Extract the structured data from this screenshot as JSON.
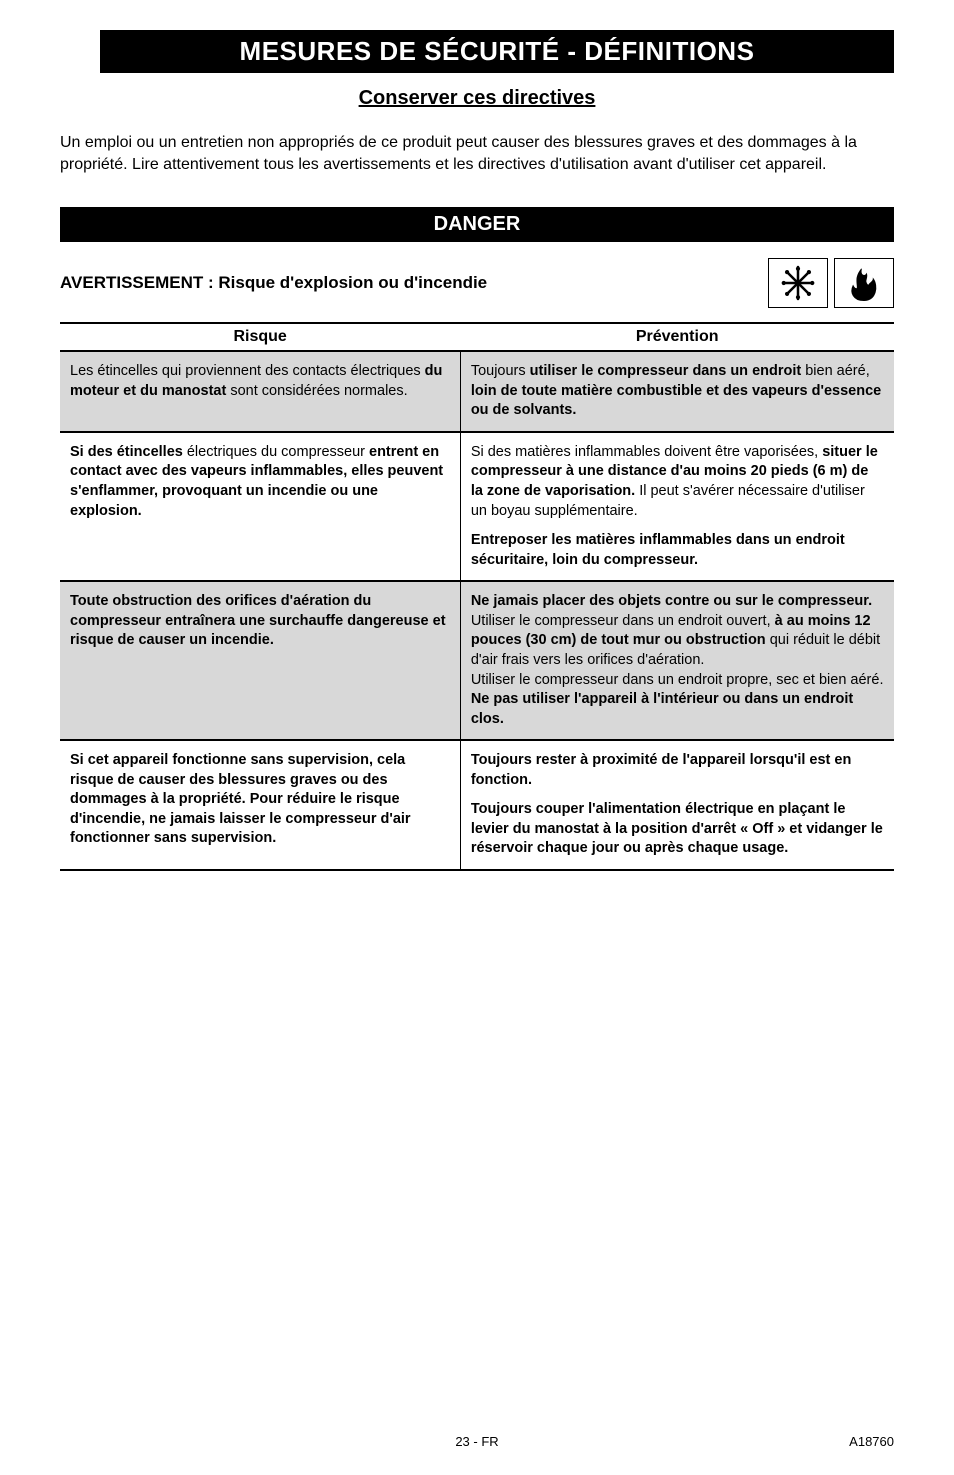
{
  "title": "MESURES DE SÉCURITÉ - DÉFINITIONS",
  "subhead": "Conserver ces directives",
  "intro": "Un emploi ou un entretien non appropriés de ce produit peut causer des blessures graves et des dommages à la propriété. Lire attentivement tous les avertissements et les directives d'utilisation avant d'utiliser cet appareil.",
  "danger": "DANGER",
  "warning_label": "AVERTISSEMENT : Risque d'explosion ou d'incendie",
  "icons": {
    "spark": "spark-icon",
    "fire": "fire-icon"
  },
  "table": {
    "header_left": "Risque",
    "header_right": "Prévention",
    "rows": [
      {
        "left_html": "Les étincelles qui proviennent des contacts électriques <b>du moteur et du manostat</b> sont considérées normales.",
        "right_html": "Toujours <b>utiliser le compresseur dans un endroit</b> bien aéré, <b>loin de toute matière combustible et des vapeurs d'essence ou de solvants.</b>",
        "shade": true
      },
      {
        "left_html": "<b>Si des étincelles</b> électriques du compresseur <b>entrent en contact avec des vapeurs inflammables, elles peuvent s'enflammer, provoquant un incendie ou une explosion.</b>",
        "right_html": "Si des matières inflammables doivent être vaporisées, <b>situer le compresseur à une distance d'au moins 20 pieds (6 m) de la zone de vaporisation.</b> Il peut s'avérer nécessaire d'utiliser un boyau supplémentaire.<div class='spacer-block'><b>Entreposer les matières inflammables dans un endroit sécuritaire, loin du compresseur.</b></div>",
        "shade": false
      },
      {
        "left_html": "<b>Toute obstruction des orifices d'aération du compresseur entraînera une surchauffe dangereuse et risque de causer un incendie.</b>",
        "right_html": "<b>Ne jamais placer des objets contre ou sur le compresseur.</b> Utiliser le compresseur dans un endroit ouvert, <b>à au moins 12 pouces (30 cm) de tout mur ou obstruction</b> qui réduit le débit d'air frais vers les orifices d'aération.<br>Utiliser le compresseur dans un endroit propre, sec et bien aéré. <b>Ne pas utiliser l'appareil à l'intérieur ou dans un endroit clos.</b>",
        "shade": true
      },
      {
        "left_html": "<b>Si cet appareil fonctionne sans supervision, cela risque de causer des blessures graves ou des dommages à la propriété. Pour réduire le risque d'incendie, ne jamais laisser le compresseur d'air fonctionner sans supervision.</b>",
        "right_html": "<b>Toujours rester à proximité de l'appareil lorsqu'il est en fonction.</b><div class='spacer-block'><b>Toujours couper l'alimentation électrique en plaçant le levier du manostat à la position d'arrêt « Off » et vidanger le réservoir chaque jour ou après chaque usage.</b></div>",
        "shade": false
      }
    ]
  },
  "footer": {
    "center": "23 - FR",
    "right": "A18760"
  }
}
